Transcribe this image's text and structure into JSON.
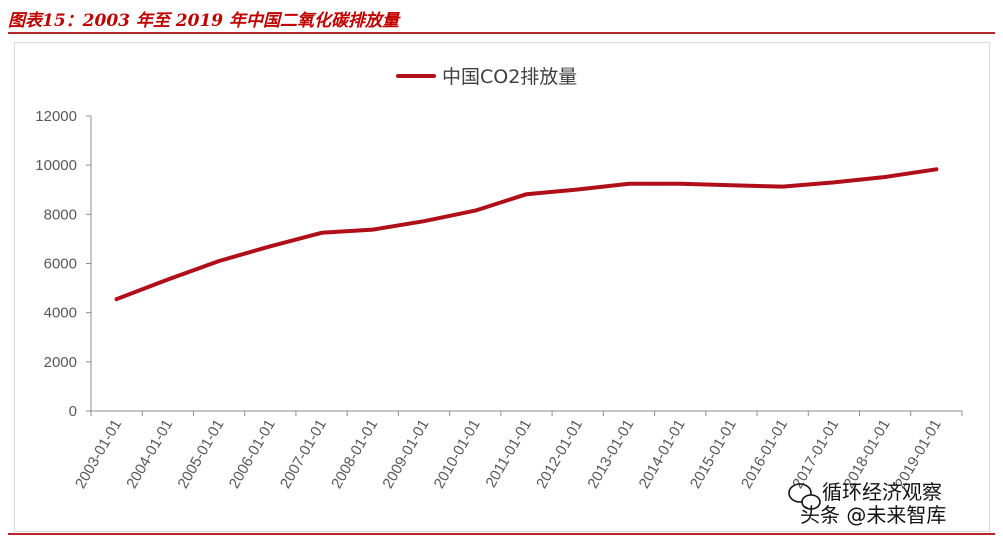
{
  "caption": "图表15：2003 年至 2019 年中国二氧化碳排放量",
  "watermark": {
    "line1": "循环经济观察",
    "line2": "头条 @未来智库"
  },
  "chart_data": {
    "type": "line",
    "title": "",
    "xlabel": "",
    "ylabel": "",
    "ylim": [
      0,
      12000
    ],
    "yticks": [
      0,
      2000,
      4000,
      6000,
      8000,
      10000,
      12000
    ],
    "grid": false,
    "legend_position": "top-center",
    "categories": [
      "2003-01-01",
      "2004-01-01",
      "2005-01-01",
      "2006-01-01",
      "2007-01-01",
      "2008-01-01",
      "2009-01-01",
      "2010-01-01",
      "2011-01-01",
      "2012-01-01",
      "2013-01-01",
      "2014-01-01",
      "2015-01-01",
      "2016-01-01",
      "2017-01-01",
      "2018-01-01",
      "2019-01-01"
    ],
    "series": [
      {
        "name": "中国CO2排放量",
        "color": "#b00f1a",
        "values": [
          4550,
          5350,
          6100,
          6700,
          7250,
          7380,
          7720,
          8150,
          8820,
          9010,
          9240,
          9240,
          9180,
          9130,
          9300,
          9520,
          9830
        ]
      }
    ]
  }
}
